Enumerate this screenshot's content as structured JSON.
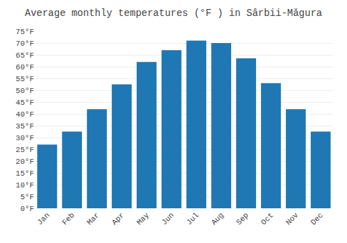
{
  "chart_data": {
    "type": "bar",
    "title": "Average monthly temperatures (°F ) in Sârbii-Măgura",
    "categories": [
      "Jan",
      "Feb",
      "Mar",
      "Apr",
      "May",
      "Jun",
      "Jul",
      "Aug",
      "Sep",
      "Oct",
      "Nov",
      "Dec"
    ],
    "values": [
      27.0,
      32.5,
      42.0,
      52.5,
      62.0,
      67.0,
      71.0,
      70.0,
      63.5,
      53.0,
      42.0,
      32.5
    ],
    "ylim": [
      0,
      75
    ],
    "yticks": [
      {
        "value": 0,
        "label": "0°F"
      },
      {
        "value": 5,
        "label": "5°F"
      },
      {
        "value": 10,
        "label": "10°F"
      },
      {
        "value": 15,
        "label": "15°F"
      },
      {
        "value": 20,
        "label": "20°F"
      },
      {
        "value": 25,
        "label": "25°F"
      },
      {
        "value": 30,
        "label": "30°F"
      },
      {
        "value": 35,
        "label": "35°F"
      },
      {
        "value": 40,
        "label": "40°F"
      },
      {
        "value": 45,
        "label": "45°F"
      },
      {
        "value": 50,
        "label": "50°F"
      },
      {
        "value": 55,
        "label": "55°F"
      },
      {
        "value": 60,
        "label": "60°F"
      },
      {
        "value": 65,
        "label": "65°F"
      },
      {
        "value": 70,
        "label": "70°F"
      },
      {
        "value": 75,
        "label": "75°F"
      }
    ],
    "grid": true
  }
}
